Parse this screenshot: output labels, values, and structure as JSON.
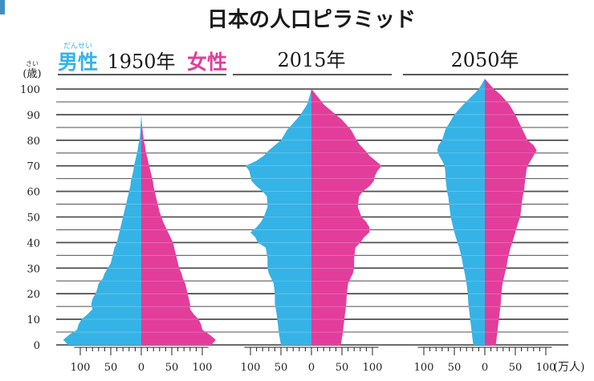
{
  "chart_data": {
    "type": "population_pyramid",
    "title": "日本の人口ピラミッド",
    "ylabel": "(歳)",
    "ylabel_ruby": "さい",
    "unit_label": "(万人)",
    "legend": {
      "male": "男性",
      "male_ruby": "だんせい",
      "female": "女性",
      "male_color": "#35b3e6",
      "female_color": "#e23d9a"
    },
    "age_ticks": [
      0,
      10,
      20,
      30,
      40,
      50,
      60,
      70,
      80,
      90,
      100
    ],
    "x_ticks": [
      100,
      50,
      0,
      50,
      100
    ],
    "xlim": [
      -125,
      125
    ],
    "ylim": [
      0,
      105
    ],
    "panels": [
      {
        "year": "1950年",
        "ages": [
          0,
          2,
          4,
          6,
          8,
          10,
          12,
          14,
          16,
          18,
          20,
          22,
          24,
          26,
          28,
          30,
          32,
          34,
          36,
          38,
          40,
          42,
          44,
          46,
          48,
          50,
          52,
          54,
          56,
          58,
          60,
          62,
          64,
          66,
          68,
          70,
          72,
          74,
          76,
          78,
          80,
          82,
          84,
          86,
          88,
          90
        ],
        "male": [
          120,
          128,
          118,
          105,
          103,
          98,
          88,
          80,
          82,
          80,
          75,
          72,
          70,
          63,
          60,
          55,
          50,
          48,
          46,
          44,
          40,
          38,
          36,
          34,
          32,
          30,
          28,
          26,
          24,
          22,
          20,
          18,
          17,
          15,
          13,
          12,
          10,
          8,
          6,
          5,
          3,
          2,
          1.5,
          1,
          0.5,
          0
        ],
        "female": [
          115,
          122,
          112,
          100,
          98,
          94,
          86,
          80,
          80,
          78,
          76,
          74,
          72,
          68,
          66,
          62,
          60,
          58,
          56,
          54,
          52,
          48,
          44,
          40,
          36,
          33,
          30,
          28,
          26,
          24,
          22,
          20,
          19,
          17,
          15,
          13,
          11,
          9,
          7,
          6,
          4,
          3,
          2,
          1,
          0.5,
          0
        ]
      },
      {
        "year": "2015年",
        "ages": [
          0,
          4,
          8,
          12,
          16,
          20,
          24,
          28,
          30,
          34,
          38,
          40,
          42,
          44,
          46,
          48,
          50,
          54,
          58,
          60,
          62,
          64,
          66,
          68,
          70,
          72,
          74,
          76,
          78,
          80,
          84,
          88,
          90,
          94,
          98,
          100
        ],
        "male": [
          50,
          53,
          55,
          57,
          60,
          60,
          62,
          70,
          72,
          72,
          75,
          88,
          92,
          100,
          90,
          83,
          78,
          72,
          73,
          80,
          90,
          98,
          100,
          102,
          108,
          90,
          78,
          70,
          60,
          50,
          40,
          25,
          18,
          7,
          2,
          0
        ],
        "female": [
          48,
          51,
          53,
          55,
          57,
          58,
          60,
          68,
          70,
          70,
          72,
          80,
          86,
          95,
          95,
          90,
          82,
          76,
          78,
          84,
          95,
          102,
          104,
          108,
          115,
          105,
          95,
          88,
          80,
          74,
          65,
          50,
          40,
          20,
          7,
          0
        ]
      },
      {
        "year": "2050年",
        "ages": [
          0,
          4,
          8,
          12,
          16,
          20,
          24,
          28,
          30,
          34,
          38,
          40,
          44,
          48,
          50,
          54,
          58,
          60,
          64,
          68,
          70,
          72,
          74,
          76,
          78,
          80,
          84,
          88,
          90,
          94,
          98,
          100,
          104
        ],
        "male": [
          19,
          21,
          23,
          25,
          27,
          28,
          30,
          33,
          35,
          38,
          42,
          45,
          50,
          54,
          56,
          58,
          60,
          62,
          64,
          65,
          66,
          70,
          75,
          78,
          76,
          70,
          65,
          55,
          50,
          35,
          18,
          10,
          0
        ],
        "female": [
          18,
          20,
          22,
          24,
          26,
          27,
          29,
          33,
          35,
          38,
          42,
          45,
          50,
          55,
          58,
          60,
          62,
          64,
          66,
          68,
          70,
          75,
          80,
          85,
          80,
          70,
          62,
          54,
          50,
          40,
          25,
          15,
          0
        ]
      }
    ]
  }
}
